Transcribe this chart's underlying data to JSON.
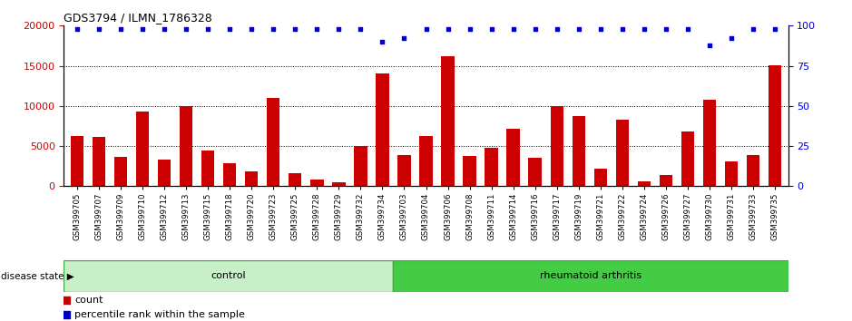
{
  "title": "GDS3794 / ILMN_1786328",
  "categories": [
    "GSM399705",
    "GSM399707",
    "GSM399709",
    "GSM399710",
    "GSM399712",
    "GSM399713",
    "GSM399715",
    "GSM399718",
    "GSM399720",
    "GSM399723",
    "GSM399725",
    "GSM399728",
    "GSM399729",
    "GSM399732",
    "GSM399734",
    "GSM399703",
    "GSM399704",
    "GSM399706",
    "GSM399708",
    "GSM399711",
    "GSM399714",
    "GSM399716",
    "GSM399717",
    "GSM399719",
    "GSM399721",
    "GSM399722",
    "GSM399724",
    "GSM399726",
    "GSM399727",
    "GSM399730",
    "GSM399731",
    "GSM399733",
    "GSM399735"
  ],
  "counts": [
    6300,
    6100,
    3700,
    9300,
    3300,
    10000,
    4400,
    2900,
    1800,
    11000,
    1600,
    800,
    500,
    5000,
    14000,
    3900,
    6200,
    16200,
    3800,
    4800,
    7100,
    3500,
    10000,
    8700,
    2200,
    8300,
    600,
    1400,
    6800,
    10800,
    3100,
    3900,
    15100
  ],
  "percentile_ranks": [
    98,
    98,
    98,
    98,
    98,
    98,
    98,
    98,
    98,
    98,
    98,
    98,
    98,
    98,
    90,
    92,
    98,
    98,
    98,
    98,
    98,
    98,
    98,
    98,
    98,
    98,
    98,
    98,
    98,
    88,
    92,
    98,
    98
  ],
  "control_count": 15,
  "ra_count": 18,
  "bar_color": "#cc0000",
  "dot_color": "#0000cc",
  "control_color": "#c8f0c8",
  "ra_color": "#44cc44",
  "left_ylim": [
    0,
    20000
  ],
  "right_ylim": [
    0,
    100
  ],
  "left_yticks": [
    0,
    5000,
    10000,
    15000,
    20000
  ],
  "right_yticks": [
    0,
    25,
    50,
    75,
    100
  ],
  "grid_values": [
    5000,
    10000,
    15000
  ],
  "disease_state_label": "disease state"
}
